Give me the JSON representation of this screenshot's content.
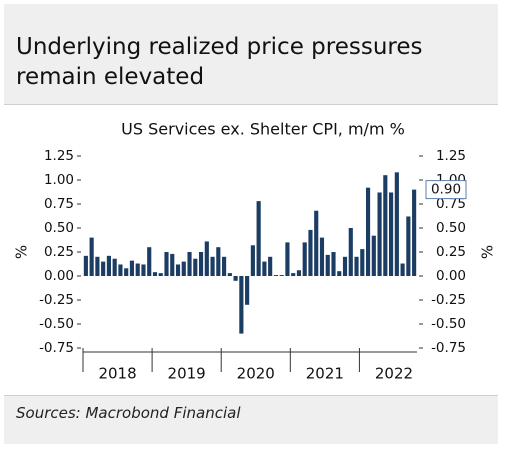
{
  "header": {
    "title": "Underlying realized price pressures remain elevated"
  },
  "chart_data": {
    "type": "bar",
    "title": "US Services ex. Shelter CPI, m/m %",
    "y_label": "%",
    "y2_label": "%",
    "year_labels": [
      "2018",
      "2019",
      "2020",
      "2021",
      "2022"
    ],
    "values": [
      0.21,
      0.4,
      0.2,
      0.15,
      0.21,
      0.18,
      0.12,
      0.08,
      0.16,
      0.13,
      0.12,
      0.3,
      0.04,
      0.03,
      0.25,
      0.23,
      0.12,
      0.15,
      0.25,
      0.18,
      0.25,
      0.36,
      0.2,
      0.3,
      0.2,
      0.03,
      -0.05,
      -0.6,
      -0.3,
      0.32,
      0.78,
      0.15,
      0.2,
      0.01,
      0.01,
      0.35,
      0.03,
      0.06,
      0.35,
      0.48,
      0.68,
      0.4,
      0.22,
      0.25,
      0.05,
      0.2,
      0.5,
      0.2,
      0.28,
      0.92,
      0.42,
      0.87,
      1.05,
      0.87,
      1.08,
      0.13,
      0.62,
      0.9
    ],
    "last_value_label": "0.90",
    "color": "#1c3d63",
    "ylim": [
      -0.75,
      1.25
    ],
    "yticks": [
      1.25,
      {
        "value": 1,
        "label": "1.00"
      },
      0.75,
      {
        "value": 0.5,
        "label": "0.50"
      },
      0.25,
      {
        "value": 0,
        "label": "0.00"
      },
      -0.25,
      {
        "value": -0.5,
        "label": "-0.50"
      },
      -0.75
    ],
    "y2lim": [
      -0.75,
      1.25
    ],
    "y2ticks": [
      1.25,
      {
        "value": 1,
        "label": "1.00"
      },
      0.75,
      {
        "value": 0.5,
        "label": "0.50"
      },
      0.25,
      {
        "value": 0,
        "label": "0.00"
      },
      -0.25,
      {
        "value": -0.5,
        "label": "-0.50"
      },
      -0.75
    ]
  },
  "footer": {
    "source": "Sources: Macrobond Financial"
  }
}
